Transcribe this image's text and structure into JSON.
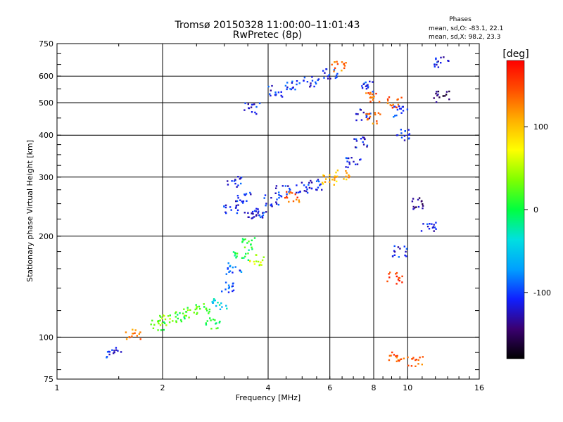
{
  "chart_data": {
    "type": "scatter",
    "title": "Tromsø 20150328 11:00:00–11:01:43",
    "subtitle": "RwPretec (8p)",
    "xlabel": "Frequency [MHz]",
    "ylabel": "Stationary phase Virtual Height [km]",
    "x_scale": "log",
    "y_scale": "log",
    "xlim": [
      1,
      16
    ],
    "ylim": [
      75,
      750
    ],
    "x_ticks": [
      1,
      2,
      4,
      6,
      8,
      10,
      16
    ],
    "x_tick_labels": [
      "1",
      "2",
      "4",
      "6",
      "8",
      "10",
      "16"
    ],
    "y_ticks": [
      75,
      100,
      200,
      300,
      400,
      500,
      600,
      750
    ],
    "y_tick_labels": [
      "75",
      "100",
      "200",
      "300",
      "400",
      "500",
      "600",
      "750"
    ],
    "x_gridlines": [
      2,
      4,
      6,
      8,
      10
    ],
    "y_gridlines": [
      100,
      200,
      300,
      400,
      500,
      600
    ],
    "grid": true,
    "phase_box": {
      "heading": "Phases",
      "line_o": "mean, sd,O: -83.1, 22.1",
      "line_x": "mean, sd,X:  98.2, 23.3"
    },
    "colorbar": {
      "label": "[deg]",
      "tick_labels": [
        "100",
        "0",
        "-100"
      ],
      "tick_values": [
        100,
        0,
        -100
      ],
      "range": [
        -180,
        180
      ],
      "colors": [
        "#000000",
        "#3a0070",
        "#1020ff",
        "#00a0ff",
        "#00e0e0",
        "#00ff40",
        "#80ff00",
        "#ffff00",
        "#ffb000",
        "#ff5000",
        "#ff0000"
      ]
    },
    "series": [
      {
        "clusters": [
          {
            "x": 1.45,
            "y": 90,
            "phase": -110
          },
          {
            "x": 1.65,
            "y": 102,
            "phase": 130
          },
          {
            "x": 1.95,
            "y": 108,
            "phase": 20
          },
          {
            "x": 2.05,
            "y": 112,
            "phase": 40
          },
          {
            "x": 2.2,
            "y": 115,
            "phase": 10
          },
          {
            "x": 2.4,
            "y": 118,
            "phase": 30
          },
          {
            "x": 2.6,
            "y": 122,
            "phase": 20
          },
          {
            "x": 2.8,
            "y": 110,
            "phase": 10
          },
          {
            "x": 2.9,
            "y": 125,
            "phase": -40
          },
          {
            "x": 3.1,
            "y": 140,
            "phase": -90
          },
          {
            "x": 3.2,
            "y": 160,
            "phase": -90
          },
          {
            "x": 3.35,
            "y": 175,
            "phase": 0
          },
          {
            "x": 3.5,
            "y": 190,
            "phase": 10
          },
          {
            "x": 3.7,
            "y": 170,
            "phase": 60
          },
          {
            "x": 3.15,
            "y": 240,
            "phase": -110
          },
          {
            "x": 3.2,
            "y": 290,
            "phase": -110
          },
          {
            "x": 3.4,
            "y": 260,
            "phase": -110
          },
          {
            "x": 3.6,
            "y": 230,
            "phase": -115
          },
          {
            "x": 3.8,
            "y": 235,
            "phase": -110
          },
          {
            "x": 4.1,
            "y": 255,
            "phase": -110
          },
          {
            "x": 4.4,
            "y": 272,
            "phase": -110
          },
          {
            "x": 4.7,
            "y": 262,
            "phase": 140
          },
          {
            "x": 5.0,
            "y": 278,
            "phase": -110
          },
          {
            "x": 5.5,
            "y": 285,
            "phase": -110
          },
          {
            "x": 6.0,
            "y": 295,
            "phase": 100
          },
          {
            "x": 6.5,
            "y": 305,
            "phase": 110
          },
          {
            "x": 7.0,
            "y": 330,
            "phase": -110
          },
          {
            "x": 7.3,
            "y": 380,
            "phase": -110
          },
          {
            "x": 7.5,
            "y": 460,
            "phase": -110
          },
          {
            "x": 7.7,
            "y": 560,
            "phase": -110
          },
          {
            "x": 7.9,
            "y": 520,
            "phase": 140
          },
          {
            "x": 8.0,
            "y": 450,
            "phase": 130
          },
          {
            "x": 3.6,
            "y": 480,
            "phase": -110
          },
          {
            "x": 4.2,
            "y": 540,
            "phase": -110
          },
          {
            "x": 4.7,
            "y": 560,
            "phase": -100
          },
          {
            "x": 5.3,
            "y": 575,
            "phase": -110
          },
          {
            "x": 6.0,
            "y": 610,
            "phase": -110
          },
          {
            "x": 6.4,
            "y": 640,
            "phase": 130
          },
          {
            "x": 9.2,
            "y": 500,
            "phase": 140
          },
          {
            "x": 9.5,
            "y": 470,
            "phase": -100
          },
          {
            "x": 9.8,
            "y": 400,
            "phase": -110
          },
          {
            "x": 12.5,
            "y": 660,
            "phase": -110
          },
          {
            "x": 12.5,
            "y": 520,
            "phase": -150
          },
          {
            "x": 10.7,
            "y": 250,
            "phase": -140
          },
          {
            "x": 11.5,
            "y": 215,
            "phase": -110
          },
          {
            "x": 9.5,
            "y": 180,
            "phase": -110
          },
          {
            "x": 9.2,
            "y": 150,
            "phase": 160
          },
          {
            "x": 9.3,
            "y": 88,
            "phase": 140
          },
          {
            "x": 10.5,
            "y": 85,
            "phase": 140
          }
        ]
      }
    ]
  }
}
